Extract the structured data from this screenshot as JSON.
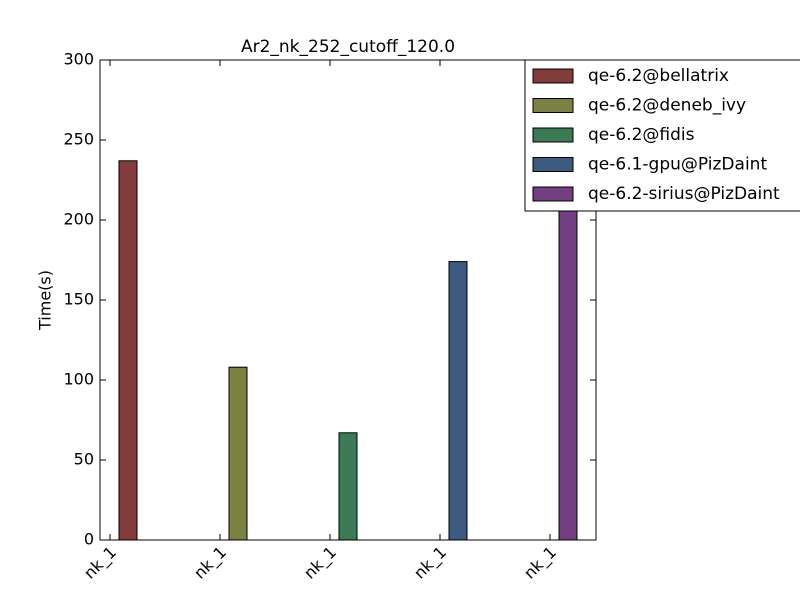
{
  "chart_data": {
    "type": "bar",
    "title": "Ar2_nk_252_cutoff_120.0",
    "ylabel": "Time(s)",
    "categories": [
      "nk_1",
      "nk_1",
      "nk_1",
      "nk_1",
      "nk_1"
    ],
    "series": [
      {
        "name": "qe-6.2@bellatrix",
        "color": "#833c3c",
        "values": [
          237,
          null,
          null,
          null,
          null
        ]
      },
      {
        "name": "qe-6.2@deneb_ivy",
        "color": "#7b8140",
        "values": [
          null,
          108,
          null,
          null,
          null
        ]
      },
      {
        "name": "qe-6.2@fidis",
        "color": "#3a7a55",
        "values": [
          null,
          null,
          67,
          null,
          null
        ]
      },
      {
        "name": "qe-6.1-gpu@PizDaint",
        "color": "#3d5a80",
        "values": [
          null,
          null,
          null,
          174,
          null
        ]
      },
      {
        "name": "qe-6.2-sirius@PizDaint",
        "color": "#733f80",
        "values": [
          null,
          null,
          null,
          null,
          225
        ]
      }
    ],
    "ylim": [
      0,
      300
    ],
    "yticks": [
      0,
      50,
      100,
      150,
      200,
      250,
      300
    ],
    "legend": "upper right"
  }
}
